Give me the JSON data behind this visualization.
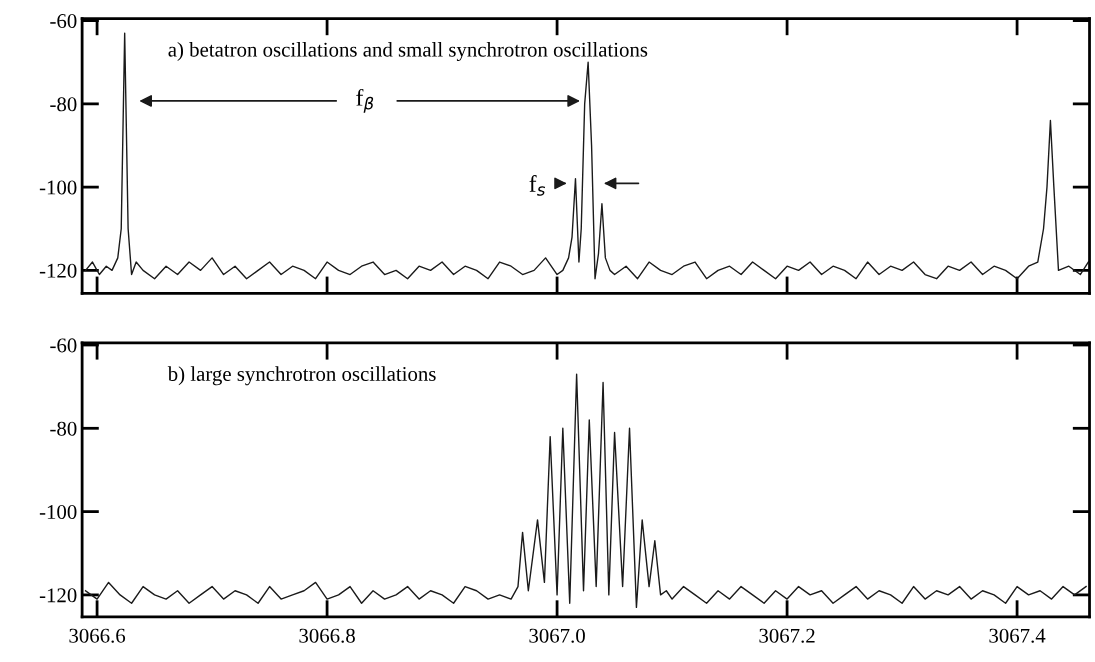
{
  "chart_data": [
    {
      "type": "line",
      "tick_labels": "y",
      "xlim": [
        3066.587,
        3067.463
      ],
      "ylim": [
        -125.5,
        -59.5
      ],
      "xticks": [
        {
          "value": 3066.6,
          "label": null
        },
        {
          "value": 3066.8,
          "label": null
        },
        {
          "value": 3067.0,
          "label": null
        },
        {
          "value": 3067.2,
          "label": null
        },
        {
          "value": 3067.4,
          "label": null
        }
      ],
      "yticks": [
        -60,
        -80,
        -100,
        -120
      ],
      "grid": false,
      "legend": false,
      "annotations": [
        "a) betatron oscillations and small synchrotron oscillations",
        "f$_{β}$",
        "f$_{s}$"
      ],
      "series": [
        {
          "color": "#1a1a1a",
          "x": [
            3066.59,
            3066.596,
            3066.602,
            3066.608,
            3066.613,
            3066.618,
            3066.621,
            3066.624,
            3066.627,
            3066.63,
            3066.634,
            3066.64,
            3066.65,
            3066.66,
            3066.67,
            3066.68,
            3066.69,
            3066.7,
            3066.71,
            3066.72,
            3066.73,
            3066.74,
            3066.75,
            3066.76,
            3066.77,
            3066.78,
            3066.79,
            3066.8,
            3066.81,
            3066.82,
            3066.83,
            3066.84,
            3066.85,
            3066.86,
            3066.87,
            3066.88,
            3066.89,
            3066.9,
            3066.91,
            3066.92,
            3066.93,
            3066.94,
            3066.95,
            3066.96,
            3066.97,
            3066.98,
            3066.99,
            3067.0,
            3067.005,
            3067.01,
            3067.013,
            3067.016,
            3067.019,
            3067.021,
            3067.024,
            3067.027,
            3067.03,
            3067.033,
            3067.036,
            3067.039,
            3067.042,
            3067.046,
            3067.05,
            3067.06,
            3067.07,
            3067.08,
            3067.09,
            3067.1,
            3067.11,
            3067.12,
            3067.13,
            3067.14,
            3067.15,
            3067.16,
            3067.17,
            3067.18,
            3067.19,
            3067.2,
            3067.21,
            3067.22,
            3067.23,
            3067.24,
            3067.25,
            3067.26,
            3067.27,
            3067.28,
            3067.29,
            3067.3,
            3067.31,
            3067.32,
            3067.33,
            3067.34,
            3067.35,
            3067.36,
            3067.37,
            3067.38,
            3067.39,
            3067.4,
            3067.41,
            3067.418,
            3067.423,
            3067.426,
            3067.429,
            3067.432,
            3067.436,
            3067.445,
            3067.455,
            3067.462
          ],
          "values": [
            -120,
            -118,
            -121,
            -119,
            -120,
            -117,
            -110,
            -63,
            -110,
            -121,
            -118,
            -120,
            -122,
            -119,
            -121,
            -118,
            -120,
            -117,
            -121,
            -119,
            -122,
            -120,
            -118,
            -121,
            -119,
            -120,
            -122,
            -118,
            -120,
            -121,
            -119,
            -118,
            -121,
            -120,
            -122,
            -119,
            -120,
            -118,
            -121,
            -119,
            -120,
            -122,
            -118,
            -119,
            -121,
            -120,
            -117,
            -121,
            -120,
            -117,
            -112,
            -98,
            -118,
            -110,
            -80,
            -70,
            -90,
            -122,
            -116,
            -104,
            -117,
            -120,
            -121,
            -119,
            -122,
            -118,
            -120,
            -121,
            -119,
            -118,
            -122,
            -120,
            -119,
            -121,
            -118,
            -120,
            -122,
            -119,
            -120,
            -118,
            -121,
            -119,
            -120,
            -122,
            -118,
            -121,
            -119,
            -120,
            -118,
            -121,
            -122,
            -119,
            -120,
            -118,
            -121,
            -119,
            -120,
            -122,
            -119,
            -118,
            -110,
            -100,
            -84,
            -100,
            -120,
            -119,
            -121,
            -118
          ]
        }
      ]
    },
    {
      "type": "line",
      "xlim": [
        3066.587,
        3067.463
      ],
      "ylim": [
        -125.3,
        -59.5
      ],
      "xticks": [
        {
          "value": 3066.6,
          "label": "3066.6"
        },
        {
          "value": 3066.8,
          "label": "3066.8"
        },
        {
          "value": 3067.0,
          "label": "3067.0"
        },
        {
          "value": 3067.2,
          "label": "3067.2"
        },
        {
          "value": 3067.4,
          "label": "3067.4"
        }
      ],
      "yticks": [
        -60,
        -80,
        -100,
        -120
      ],
      "grid": false,
      "legend": false,
      "annotations": [
        "b) large synchrotron oscillations"
      ],
      "series": [
        {
          "color": "#1a1a1a",
          "x": [
            3066.59,
            3066.6,
            3066.61,
            3066.62,
            3066.63,
            3066.64,
            3066.65,
            3066.66,
            3066.67,
            3066.68,
            3066.69,
            3066.7,
            3066.71,
            3066.72,
            3066.73,
            3066.74,
            3066.75,
            3066.76,
            3066.77,
            3066.78,
            3066.79,
            3066.8,
            3066.81,
            3066.82,
            3066.83,
            3066.84,
            3066.85,
            3066.86,
            3066.87,
            3066.88,
            3066.89,
            3066.9,
            3066.91,
            3066.92,
            3066.93,
            3066.94,
            3066.95,
            3066.96,
            3066.966,
            3066.97,
            3066.975,
            3066.983,
            3066.989,
            3066.994,
            3067.0,
            3067.005,
            3067.011,
            3067.017,
            3067.023,
            3067.028,
            3067.034,
            3067.04,
            3067.045,
            3067.05,
            3067.057,
            3067.063,
            3067.069,
            3067.074,
            3067.08,
            3067.085,
            3067.09,
            3067.095,
            3067.1,
            3067.11,
            3067.12,
            3067.13,
            3067.14,
            3067.15,
            3067.16,
            3067.17,
            3067.18,
            3067.19,
            3067.2,
            3067.21,
            3067.22,
            3067.23,
            3067.24,
            3067.25,
            3067.26,
            3067.27,
            3067.28,
            3067.29,
            3067.3,
            3067.31,
            3067.32,
            3067.33,
            3067.34,
            3067.35,
            3067.36,
            3067.37,
            3067.38,
            3067.39,
            3067.4,
            3067.41,
            3067.42,
            3067.43,
            3067.44,
            3067.45,
            3067.46
          ],
          "values": [
            -119,
            -121,
            -117,
            -120,
            -122,
            -118,
            -120,
            -121,
            -119,
            -122,
            -120,
            -118,
            -121,
            -119,
            -120,
            -122,
            -118,
            -121,
            -120,
            -119,
            -117,
            -121,
            -120,
            -118,
            -122,
            -119,
            -121,
            -120,
            -118,
            -121,
            -119,
            -120,
            -122,
            -118,
            -119,
            -121,
            -120,
            -121,
            -118,
            -105,
            -119,
            -102,
            -117,
            -82,
            -120,
            -80,
            -122,
            -67,
            -119,
            -78,
            -118,
            -69,
            -120,
            -81,
            -118,
            -80,
            -123,
            -102,
            -118,
            -107,
            -120,
            -119,
            -121,
            -118,
            -120,
            -122,
            -119,
            -121,
            -118,
            -120,
            -122,
            -119,
            -121,
            -118,
            -120,
            -119,
            -122,
            -120,
            -118,
            -121,
            -119,
            -120,
            -122,
            -118,
            -121,
            -119,
            -120,
            -118,
            -121,
            -119,
            -120,
            -122,
            -118,
            -120,
            -119,
            -121,
            -118,
            -120,
            -118
          ]
        }
      ]
    }
  ]
}
